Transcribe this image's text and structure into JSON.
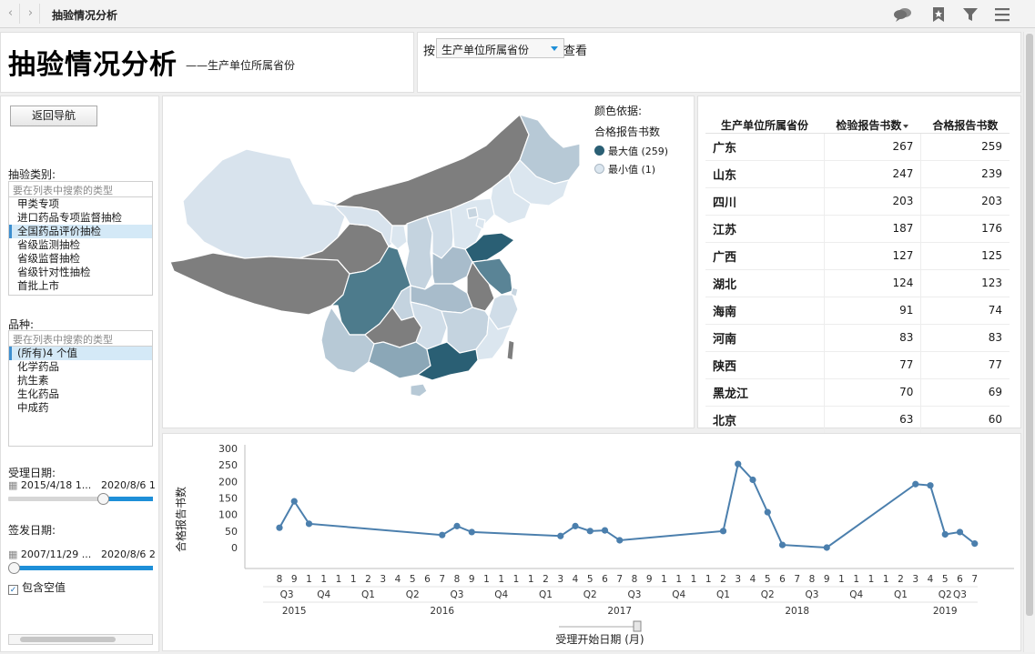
{
  "app": {
    "title": "抽验情况分析"
  },
  "toolbar": {
    "icons": [
      "comment-icon",
      "bookmark-icon",
      "filter-icon",
      "menu-icon"
    ]
  },
  "header": {
    "title": "抽验情况分析",
    "subtitle": "——生产单位所属省份",
    "by_prefix": "按",
    "by_value": "生产单位所属省份",
    "by_suffix": "查看"
  },
  "left": {
    "back_button": "返回导航",
    "category_label": "抽验类别:",
    "category_search_placeholder": "要在列表中搜索的类型",
    "category_items": [
      "甲类专项",
      "进口药品专项监督抽检",
      "全国药品评价抽检",
      "省级监测抽检",
      "省级监督抽检",
      "省级针对性抽检",
      "首批上市"
    ],
    "category_selected_index": 2,
    "variety_label": "品种:",
    "variety_search_placeholder": "要在列表中搜索的类型",
    "variety_items": [
      "(所有)4 个值",
      "化学药品",
      "抗生素",
      "生化药品",
      "中成药"
    ],
    "variety_selected_index": 0,
    "receive_label": "受理日期:",
    "receive_start": "2015/4/18 1...",
    "receive_end": "2020/8/6 1",
    "receive_slider_fraction": 0.67,
    "issue_label": "签发日期:",
    "issue_start": "2007/11/29 ...",
    "issue_end": "2020/8/6 2",
    "issue_slider_fraction": 0.0,
    "include_null_label": "包含空值",
    "include_null_checked": true
  },
  "map": {
    "legend_title": "颜色依据:",
    "legend_measure": "合格报告书数",
    "legend_max_label": "最大值 (259)",
    "legend_min_label": "最小值 (1)",
    "max_color": "#2a5f74",
    "min_color": "#dbe6ef",
    "no_data_color": "#7c7c7c"
  },
  "table": {
    "headers": [
      "生产单位所属省份",
      "检验报告书数",
      "合格报告书数"
    ],
    "rows": [
      [
        "广东",
        "267",
        "259"
      ],
      [
        "山东",
        "247",
        "239"
      ],
      [
        "四川",
        "203",
        "203"
      ],
      [
        "江苏",
        "187",
        "176"
      ],
      [
        "广西",
        "127",
        "125"
      ],
      [
        "湖北",
        "124",
        "123"
      ],
      [
        "海南",
        "91",
        "74"
      ],
      [
        "河南",
        "83",
        "83"
      ],
      [
        "陕西",
        "77",
        "77"
      ],
      [
        "黑龙江",
        "70",
        "69"
      ],
      [
        "北京",
        "63",
        "60"
      ]
    ]
  },
  "chart_data": {
    "type": "line",
    "ylabel": "合格报告书数",
    "xlabel": "受理开始日期 (月)",
    "ylim": [
      0,
      300
    ],
    "yticks": [
      0,
      50,
      100,
      150,
      200,
      250,
      300
    ],
    "line_color": "#4b7fad",
    "points": [
      {
        "x": "2015-08",
        "y": 60
      },
      {
        "x": "2015-09",
        "y": 140
      },
      {
        "x": "2015-10",
        "y": 72
      },
      {
        "x": "2016-07",
        "y": 38
      },
      {
        "x": "2016-08",
        "y": 65
      },
      {
        "x": "2016-09",
        "y": 47
      },
      {
        "x": "2017-03",
        "y": 35
      },
      {
        "x": "2017-04",
        "y": 65
      },
      {
        "x": "2017-05",
        "y": 50
      },
      {
        "x": "2017-06",
        "y": 52
      },
      {
        "x": "2017-07",
        "y": 22
      },
      {
        "x": "2018-02",
        "y": 50
      },
      {
        "x": "2018-03",
        "y": 253
      },
      {
        "x": "2018-04",
        "y": 205
      },
      {
        "x": "2018-05",
        "y": 107
      },
      {
        "x": "2018-06",
        "y": 8
      },
      {
        "x": "2018-09",
        "y": 0
      },
      {
        "x": "2019-03",
        "y": 192
      },
      {
        "x": "2019-04",
        "y": 188
      },
      {
        "x": "2019-05",
        "y": 40
      },
      {
        "x": "2019-06",
        "y": 47
      },
      {
        "x": "2019-07",
        "y": 12
      }
    ],
    "month_ticks": [
      "8",
      "9",
      "1",
      "1",
      "1",
      "1",
      "2",
      "3",
      "4",
      "5",
      "6",
      "7",
      "8",
      "9",
      "1",
      "1",
      "1",
      "1",
      "2",
      "3",
      "4",
      "5",
      "6",
      "7",
      "8",
      "9",
      "1",
      "1",
      "1",
      "1",
      "2",
      "3",
      "4",
      "5",
      "6",
      "7",
      "8",
      "9",
      "1",
      "1",
      "1",
      "1",
      "2",
      "3",
      "4",
      "5",
      "6",
      "7"
    ],
    "quarters": [
      "Q3",
      "Q4",
      "Q1",
      "Q2",
      "Q3",
      "Q4",
      "Q1",
      "Q2",
      "Q3",
      "Q4",
      "Q1",
      "Q2",
      "Q3",
      "Q4",
      "Q1",
      "Q2",
      "Q3"
    ],
    "years": [
      "2015",
      "2016",
      "2017",
      "2018",
      "2019"
    ]
  }
}
